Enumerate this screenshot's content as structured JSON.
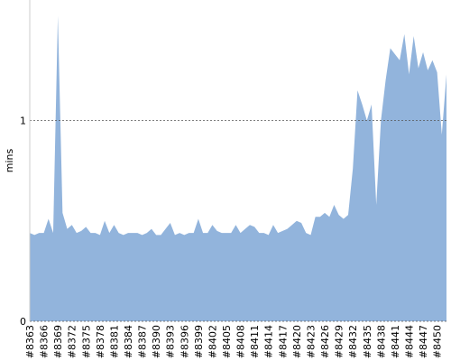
{
  "chart_data": {
    "type": "area",
    "y_label": "mins",
    "categories": [
      "#8363",
      null,
      null,
      "#8366",
      null,
      null,
      "#8369",
      null,
      null,
      "#8372",
      null,
      null,
      "#8375",
      null,
      null,
      "#8378",
      null,
      null,
      "#8381",
      null,
      null,
      "#8384",
      null,
      null,
      "#8387",
      null,
      null,
      "#8390",
      null,
      null,
      "#8393",
      null,
      null,
      "#8396",
      null,
      null,
      "#8399",
      null,
      null,
      "#8402",
      null,
      null,
      "#8405",
      null,
      null,
      "#8408",
      null,
      null,
      "#8411",
      null,
      null,
      "#8414",
      null,
      null,
      "#8417",
      null,
      null,
      "#8420",
      null,
      null,
      "#8423",
      null,
      null,
      "#8426",
      null,
      null,
      "#8429",
      null,
      null,
      "#8432",
      null,
      null,
      "#8435",
      null,
      null,
      "#8438",
      null,
      null,
      "#8441",
      null,
      null,
      "#8444",
      null,
      null,
      "#8447",
      null,
      null,
      "#8450",
      null,
      null
    ],
    "values": [
      0.44,
      0.43,
      0.44,
      0.44,
      0.51,
      0.44,
      1.52,
      0.54,
      0.46,
      0.48,
      0.44,
      0.45,
      0.47,
      0.44,
      0.44,
      0.43,
      0.5,
      0.44,
      0.48,
      0.44,
      0.43,
      0.44,
      0.44,
      0.44,
      0.43,
      0.44,
      0.46,
      0.43,
      0.43,
      0.46,
      0.49,
      0.43,
      0.44,
      0.43,
      0.44,
      0.44,
      0.51,
      0.44,
      0.44,
      0.48,
      0.45,
      0.44,
      0.44,
      0.44,
      0.48,
      0.44,
      0.46,
      0.48,
      0.47,
      0.44,
      0.44,
      0.43,
      0.48,
      0.44,
      0.45,
      0.46,
      0.48,
      0.5,
      0.49,
      0.44,
      0.43,
      0.52,
      0.52,
      0.54,
      0.52,
      0.58,
      0.53,
      0.51,
      0.53,
      0.76,
      1.15,
      1.08,
      1.0,
      1.08,
      0.58,
      1.0,
      1.2,
      1.36,
      1.33,
      1.3,
      1.43,
      1.23,
      1.42,
      1.26,
      1.34,
      1.25,
      1.3,
      1.24,
      0.93,
      1.23
    ],
    "color": "#92b4dc",
    "ylim": [
      0,
      1.6
    ],
    "yticks": [
      0,
      1
    ],
    "grid": true
  }
}
